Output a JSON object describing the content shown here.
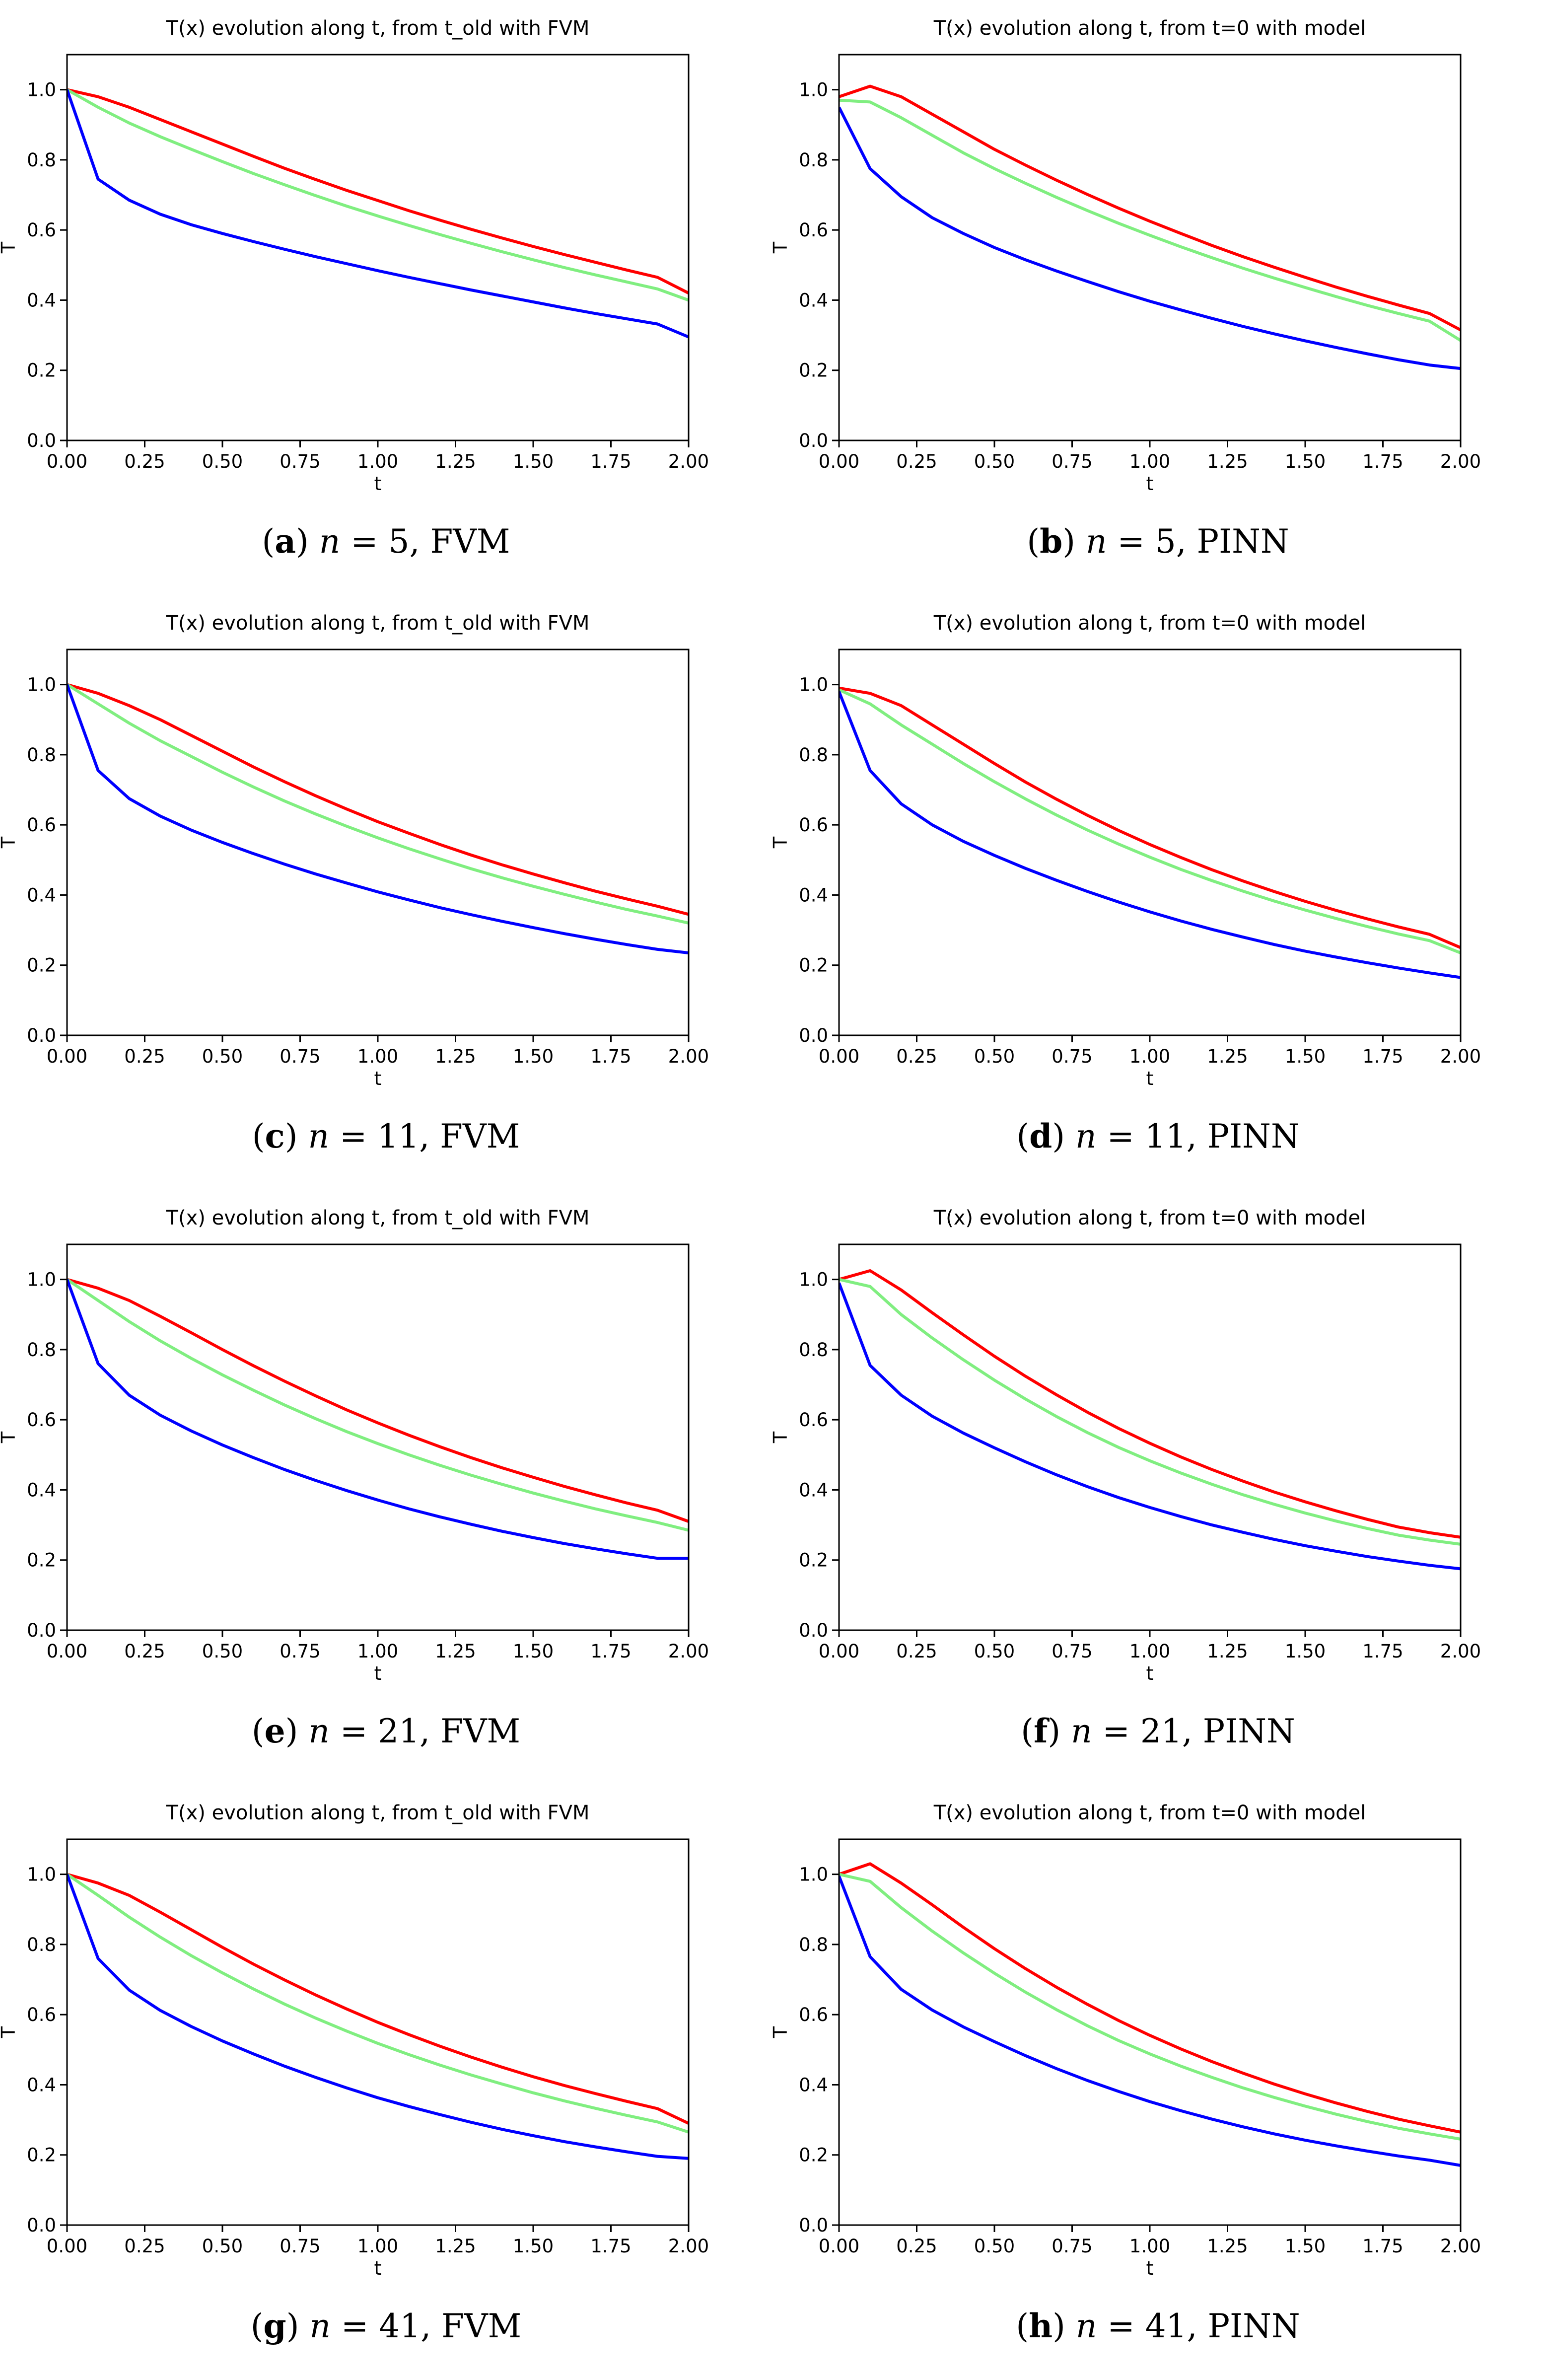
{
  "colors": {
    "s1": "#ff0000",
    "s2": "#80ee80",
    "s3": "#0000ff"
  },
  "chart_data": [
    {
      "type": "line",
      "title": "T(x) evolution along t, from t_old with FVM",
      "xlabel": "t",
      "ylabel": "T",
      "xlim": [
        0.0,
        2.0
      ],
      "ylim": [
        0.0,
        1.1
      ],
      "xticks": [
        "0.00",
        "0.25",
        "0.50",
        "0.75",
        "1.00",
        "1.25",
        "1.50",
        "1.75",
        "2.00"
      ],
      "yticks": [
        "0.0",
        "0.2",
        "0.4",
        "0.6",
        "0.8",
        "1.0"
      ],
      "x": [
        0.0,
        0.1,
        0.2,
        0.3,
        0.4,
        0.5,
        0.6,
        0.7,
        0.8,
        0.9,
        1.0,
        1.1,
        1.2,
        1.3,
        1.4,
        1.5,
        1.6,
        1.7,
        1.8,
        1.9,
        2.0
      ],
      "series": [
        {
          "color": "#ff0000",
          "values": [
            1.0,
            0.98,
            0.95,
            0.915,
            0.88,
            0.845,
            0.81,
            0.776,
            0.744,
            0.713,
            0.684,
            0.655,
            0.628,
            0.602,
            0.577,
            0.553,
            0.53,
            0.508,
            0.486,
            0.465,
            0.42
          ]
        },
        {
          "color": "#80ee80",
          "values": [
            1.0,
            0.95,
            0.905,
            0.866,
            0.83,
            0.795,
            0.761,
            0.729,
            0.698,
            0.668,
            0.64,
            0.613,
            0.587,
            0.562,
            0.538,
            0.515,
            0.493,
            0.472,
            0.452,
            0.432,
            0.4
          ]
        },
        {
          "color": "#0000ff",
          "values": [
            1.0,
            0.745,
            0.685,
            0.645,
            0.615,
            0.59,
            0.567,
            0.545,
            0.524,
            0.504,
            0.484,
            0.465,
            0.447,
            0.429,
            0.412,
            0.395,
            0.378,
            0.362,
            0.347,
            0.332,
            0.295
          ]
        }
      ],
      "caption": {
        "letter": "a",
        "n": "n",
        "rest": " = 5, FVM"
      }
    },
    {
      "type": "line",
      "title": "T(x) evolution along t, from t=0 with model",
      "xlabel": "t",
      "ylabel": "T",
      "xlim": [
        0.0,
        2.0
      ],
      "ylim": [
        0.0,
        1.1
      ],
      "xticks": [
        "0.00",
        "0.25",
        "0.50",
        "0.75",
        "1.00",
        "1.25",
        "1.50",
        "1.75",
        "2.00"
      ],
      "yticks": [
        "0.0",
        "0.2",
        "0.4",
        "0.6",
        "0.8",
        "1.0"
      ],
      "x": [
        0.0,
        0.1,
        0.2,
        0.3,
        0.4,
        0.5,
        0.6,
        0.7,
        0.8,
        0.9,
        1.0,
        1.1,
        1.2,
        1.3,
        1.4,
        1.5,
        1.6,
        1.7,
        1.8,
        1.9,
        2.0
      ],
      "series": [
        {
          "color": "#ff0000",
          "values": [
            0.98,
            1.01,
            0.98,
            0.93,
            0.88,
            0.83,
            0.785,
            0.742,
            0.701,
            0.662,
            0.625,
            0.59,
            0.556,
            0.524,
            0.494,
            0.465,
            0.437,
            0.411,
            0.386,
            0.362,
            0.315
          ]
        },
        {
          "color": "#80ee80",
          "values": [
            0.97,
            0.965,
            0.92,
            0.87,
            0.82,
            0.775,
            0.733,
            0.693,
            0.655,
            0.619,
            0.585,
            0.552,
            0.521,
            0.491,
            0.463,
            0.436,
            0.41,
            0.385,
            0.362,
            0.34,
            0.285
          ]
        },
        {
          "color": "#0000ff",
          "values": [
            0.95,
            0.775,
            0.695,
            0.635,
            0.59,
            0.55,
            0.515,
            0.483,
            0.453,
            0.424,
            0.397,
            0.372,
            0.348,
            0.325,
            0.304,
            0.284,
            0.265,
            0.247,
            0.23,
            0.215,
            0.205
          ]
        }
      ],
      "caption": {
        "letter": "b",
        "n": "n",
        "rest": " = 5, PINN"
      }
    },
    {
      "type": "line",
      "title": "T(x) evolution along t, from t_old with FVM",
      "xlabel": "t",
      "ylabel": "T",
      "xlim": [
        0.0,
        2.0
      ],
      "ylim": [
        0.0,
        1.1
      ],
      "xticks": [
        "0.00",
        "0.25",
        "0.50",
        "0.75",
        "1.00",
        "1.25",
        "1.50",
        "1.75",
        "2.00"
      ],
      "yticks": [
        "0.0",
        "0.2",
        "0.4",
        "0.6",
        "0.8",
        "1.0"
      ],
      "x": [
        0.0,
        0.1,
        0.2,
        0.3,
        0.4,
        0.5,
        0.6,
        0.7,
        0.8,
        0.9,
        1.0,
        1.1,
        1.2,
        1.3,
        1.4,
        1.5,
        1.6,
        1.7,
        1.8,
        1.9,
        2.0
      ],
      "series": [
        {
          "color": "#ff0000",
          "values": [
            1.0,
            0.975,
            0.94,
            0.9,
            0.855,
            0.81,
            0.765,
            0.723,
            0.683,
            0.645,
            0.609,
            0.576,
            0.544,
            0.514,
            0.486,
            0.46,
            0.435,
            0.411,
            0.389,
            0.368,
            0.345
          ]
        },
        {
          "color": "#80ee80",
          "values": [
            1.0,
            0.945,
            0.89,
            0.84,
            0.795,
            0.75,
            0.708,
            0.668,
            0.631,
            0.596,
            0.563,
            0.532,
            0.503,
            0.475,
            0.449,
            0.425,
            0.402,
            0.38,
            0.359,
            0.34,
            0.32
          ]
        },
        {
          "color": "#0000ff",
          "values": [
            1.0,
            0.755,
            0.675,
            0.625,
            0.585,
            0.55,
            0.518,
            0.488,
            0.46,
            0.434,
            0.409,
            0.386,
            0.364,
            0.344,
            0.325,
            0.307,
            0.29,
            0.274,
            0.259,
            0.245,
            0.235
          ]
        }
      ],
      "caption": {
        "letter": "c",
        "n": "n",
        "rest": " = 11, FVM"
      }
    },
    {
      "type": "line",
      "title": "T(x) evolution along t, from t=0 with model",
      "xlabel": "t",
      "ylabel": "T",
      "xlim": [
        0.0,
        2.0
      ],
      "ylim": [
        0.0,
        1.1
      ],
      "xticks": [
        "0.00",
        "0.25",
        "0.50",
        "0.75",
        "1.00",
        "1.25",
        "1.50",
        "1.75",
        "2.00"
      ],
      "yticks": [
        "0.0",
        "0.2",
        "0.4",
        "0.6",
        "0.8",
        "1.0"
      ],
      "x": [
        0.0,
        0.1,
        0.2,
        0.3,
        0.4,
        0.5,
        0.6,
        0.7,
        0.8,
        0.9,
        1.0,
        1.1,
        1.2,
        1.3,
        1.4,
        1.5,
        1.6,
        1.7,
        1.8,
        1.9,
        2.0
      ],
      "series": [
        {
          "color": "#ff0000",
          "values": [
            0.99,
            0.975,
            0.94,
            0.885,
            0.83,
            0.775,
            0.722,
            0.673,
            0.627,
            0.584,
            0.544,
            0.507,
            0.472,
            0.44,
            0.41,
            0.382,
            0.356,
            0.332,
            0.309,
            0.288,
            0.25
          ]
        },
        {
          "color": "#80ee80",
          "values": [
            0.985,
            0.945,
            0.885,
            0.83,
            0.775,
            0.723,
            0.674,
            0.628,
            0.585,
            0.545,
            0.508,
            0.473,
            0.441,
            0.411,
            0.383,
            0.357,
            0.333,
            0.31,
            0.289,
            0.27,
            0.235
          ]
        },
        {
          "color": "#0000ff",
          "values": [
            0.98,
            0.755,
            0.66,
            0.6,
            0.553,
            0.513,
            0.476,
            0.442,
            0.41,
            0.38,
            0.352,
            0.326,
            0.302,
            0.28,
            0.259,
            0.24,
            0.223,
            0.207,
            0.192,
            0.178,
            0.165
          ]
        }
      ],
      "caption": {
        "letter": "d",
        "n": "n",
        "rest": " = 11, PINN"
      }
    },
    {
      "type": "line",
      "title": "T(x) evolution along t, from t_old with FVM",
      "xlabel": "t",
      "ylabel": "T",
      "xlim": [
        0.0,
        2.0
      ],
      "ylim": [
        0.0,
        1.1
      ],
      "xticks": [
        "0.00",
        "0.25",
        "0.50",
        "0.75",
        "1.00",
        "1.25",
        "1.50",
        "1.75",
        "2.00"
      ],
      "yticks": [
        "0.0",
        "0.2",
        "0.4",
        "0.6",
        "0.8",
        "1.0"
      ],
      "x": [
        0.0,
        0.1,
        0.2,
        0.3,
        0.4,
        0.5,
        0.6,
        0.7,
        0.8,
        0.9,
        1.0,
        1.1,
        1.2,
        1.3,
        1.4,
        1.5,
        1.6,
        1.7,
        1.8,
        1.9,
        2.0
      ],
      "series": [
        {
          "color": "#ff0000",
          "values": [
            1.0,
            0.975,
            0.94,
            0.895,
            0.848,
            0.8,
            0.754,
            0.71,
            0.668,
            0.628,
            0.591,
            0.556,
            0.523,
            0.492,
            0.463,
            0.436,
            0.41,
            0.386,
            0.363,
            0.342,
            0.31
          ]
        },
        {
          "color": "#80ee80",
          "values": [
            1.0,
            0.94,
            0.88,
            0.825,
            0.775,
            0.728,
            0.684,
            0.642,
            0.603,
            0.566,
            0.532,
            0.5,
            0.47,
            0.442,
            0.416,
            0.391,
            0.368,
            0.346,
            0.326,
            0.307,
            0.285
          ]
        },
        {
          "color": "#0000ff",
          "values": [
            1.0,
            0.76,
            0.67,
            0.613,
            0.568,
            0.528,
            0.492,
            0.458,
            0.427,
            0.398,
            0.371,
            0.346,
            0.323,
            0.302,
            0.282,
            0.264,
            0.247,
            0.232,
            0.218,
            0.205,
            0.205
          ]
        }
      ],
      "caption": {
        "letter": "e",
        "n": "n",
        "rest": " = 21, FVM"
      }
    },
    {
      "type": "line",
      "title": "T(x) evolution along t, from t=0 with model",
      "xlabel": "t",
      "ylabel": "T",
      "xlim": [
        0.0,
        2.0
      ],
      "ylim": [
        0.0,
        1.1
      ],
      "xticks": [
        "0.00",
        "0.25",
        "0.50",
        "0.75",
        "1.00",
        "1.25",
        "1.50",
        "1.75",
        "2.00"
      ],
      "yticks": [
        "0.0",
        "0.2",
        "0.4",
        "0.6",
        "0.8",
        "1.0"
      ],
      "x": [
        0.0,
        0.1,
        0.2,
        0.3,
        0.4,
        0.5,
        0.6,
        0.7,
        0.8,
        0.9,
        1.0,
        1.1,
        1.2,
        1.3,
        1.4,
        1.5,
        1.6,
        1.7,
        1.8,
        1.9,
        2.0
      ],
      "series": [
        {
          "color": "#ff0000",
          "values": [
            1.0,
            1.025,
            0.97,
            0.905,
            0.842,
            0.781,
            0.724,
            0.671,
            0.621,
            0.575,
            0.533,
            0.494,
            0.458,
            0.425,
            0.394,
            0.366,
            0.34,
            0.316,
            0.294,
            0.278,
            0.265
          ]
        },
        {
          "color": "#80ee80",
          "values": [
            1.0,
            0.98,
            0.9,
            0.833,
            0.771,
            0.713,
            0.659,
            0.609,
            0.563,
            0.521,
            0.483,
            0.448,
            0.416,
            0.386,
            0.359,
            0.334,
            0.311,
            0.29,
            0.271,
            0.257,
            0.245
          ]
        },
        {
          "color": "#0000ff",
          "values": [
            0.99,
            0.755,
            0.67,
            0.61,
            0.562,
            0.52,
            0.48,
            0.443,
            0.409,
            0.378,
            0.35,
            0.324,
            0.3,
            0.279,
            0.259,
            0.241,
            0.225,
            0.21,
            0.197,
            0.185,
            0.175
          ]
        }
      ],
      "caption": {
        "letter": "f",
        "n": "n",
        "rest": " = 21, PINN"
      }
    },
    {
      "type": "line",
      "title": "T(x) evolution along t, from t_old with FVM",
      "xlabel": "t",
      "ylabel": "T",
      "xlim": [
        0.0,
        2.0
      ],
      "ylim": [
        0.0,
        1.1
      ],
      "xticks": [
        "0.00",
        "0.25",
        "0.50",
        "0.75",
        "1.00",
        "1.25",
        "1.50",
        "1.75",
        "2.00"
      ],
      "yticks": [
        "0.0",
        "0.2",
        "0.4",
        "0.6",
        "0.8",
        "1.0"
      ],
      "x": [
        0.0,
        0.1,
        0.2,
        0.3,
        0.4,
        0.5,
        0.6,
        0.7,
        0.8,
        0.9,
        1.0,
        1.1,
        1.2,
        1.3,
        1.4,
        1.5,
        1.6,
        1.7,
        1.8,
        1.9,
        2.0
      ],
      "series": [
        {
          "color": "#ff0000",
          "values": [
            1.0,
            0.975,
            0.94,
            0.892,
            0.842,
            0.792,
            0.744,
            0.699,
            0.656,
            0.616,
            0.578,
            0.543,
            0.51,
            0.479,
            0.45,
            0.423,
            0.398,
            0.375,
            0.353,
            0.332,
            0.29
          ]
        },
        {
          "color": "#80ee80",
          "values": [
            1.0,
            0.94,
            0.878,
            0.821,
            0.768,
            0.719,
            0.673,
            0.63,
            0.59,
            0.553,
            0.518,
            0.486,
            0.456,
            0.428,
            0.402,
            0.377,
            0.354,
            0.333,
            0.313,
            0.294,
            0.265
          ]
        },
        {
          "color": "#0000ff",
          "values": [
            1.0,
            0.76,
            0.67,
            0.612,
            0.566,
            0.525,
            0.488,
            0.453,
            0.421,
            0.391,
            0.363,
            0.338,
            0.315,
            0.293,
            0.273,
            0.255,
            0.238,
            0.223,
            0.209,
            0.196,
            0.19
          ]
        }
      ],
      "caption": {
        "letter": "g",
        "n": "n",
        "rest": " = 41, FVM"
      }
    },
    {
      "type": "line",
      "title": "T(x) evolution along t, from t=0 with model",
      "xlabel": "t",
      "ylabel": "T",
      "xlim": [
        0.0,
        2.0
      ],
      "ylim": [
        0.0,
        1.1
      ],
      "xticks": [
        "0.00",
        "0.25",
        "0.50",
        "0.75",
        "1.00",
        "1.25",
        "1.50",
        "1.75",
        "2.00"
      ],
      "yticks": [
        "0.0",
        "0.2",
        "0.4",
        "0.6",
        "0.8",
        "1.0"
      ],
      "x": [
        0.0,
        0.1,
        0.2,
        0.3,
        0.4,
        0.5,
        0.6,
        0.7,
        0.8,
        0.9,
        1.0,
        1.1,
        1.2,
        1.3,
        1.4,
        1.5,
        1.6,
        1.7,
        1.8,
        1.9,
        2.0
      ],
      "series": [
        {
          "color": "#ff0000",
          "values": [
            1.0,
            1.03,
            0.975,
            0.913,
            0.849,
            0.788,
            0.731,
            0.678,
            0.629,
            0.583,
            0.541,
            0.502,
            0.466,
            0.433,
            0.402,
            0.374,
            0.348,
            0.324,
            0.302,
            0.283,
            0.265
          ]
        },
        {
          "color": "#80ee80",
          "values": [
            1.0,
            0.98,
            0.905,
            0.838,
            0.776,
            0.718,
            0.664,
            0.614,
            0.568,
            0.526,
            0.488,
            0.453,
            0.421,
            0.391,
            0.364,
            0.339,
            0.316,
            0.295,
            0.276,
            0.26,
            0.245
          ]
        },
        {
          "color": "#0000ff",
          "values": [
            0.995,
            0.765,
            0.672,
            0.613,
            0.565,
            0.523,
            0.483,
            0.446,
            0.412,
            0.381,
            0.352,
            0.326,
            0.302,
            0.28,
            0.26,
            0.242,
            0.226,
            0.211,
            0.197,
            0.185,
            0.17
          ]
        }
      ],
      "caption": {
        "letter": "h",
        "n": "n",
        "rest": " = 41, PINN"
      }
    }
  ]
}
